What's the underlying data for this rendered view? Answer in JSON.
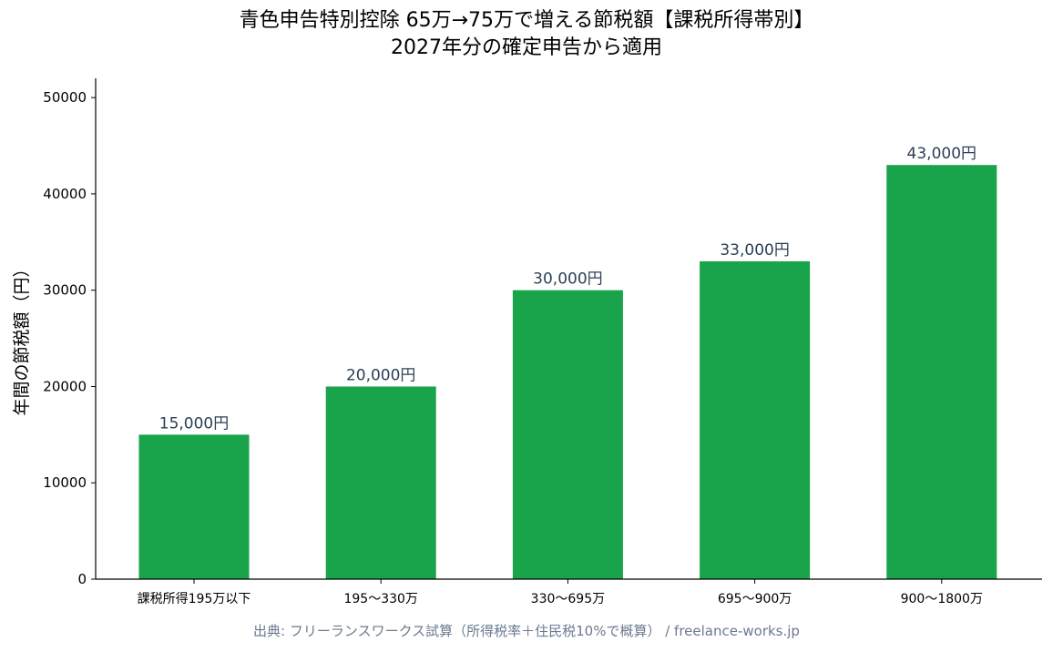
{
  "chart_data": {
    "type": "bar",
    "title": "青色申告特別控除 65万→75万で増える節税額【課税所得帯別】",
    "subtitle": "2027年分の確定申告から適用",
    "ylabel": "年間の節税額（円）",
    "xlabel": "",
    "categories": [
      "課税所得195万以下",
      "195〜330万",
      "330〜695万",
      "695〜900万",
      "900〜1800万"
    ],
    "values": [
      15000,
      20000,
      30000,
      33000,
      43000
    ],
    "data_labels": [
      "15,000円",
      "20,000円",
      "30,000円",
      "33,000円",
      "43,000円"
    ],
    "ylim": [
      0,
      52000
    ],
    "yticks": [
      0,
      10000,
      20000,
      30000,
      40000,
      50000
    ],
    "ytick_labels": [
      "0",
      "10000",
      "20000",
      "30000",
      "40000",
      "50000"
    ],
    "grid": false,
    "bar_color": "#19a34a",
    "label_color": "#2d3f55",
    "source": "出典: フリーランスワークス試算（所得税率＋住民税10%で概算） / freelance-works.jp"
  }
}
